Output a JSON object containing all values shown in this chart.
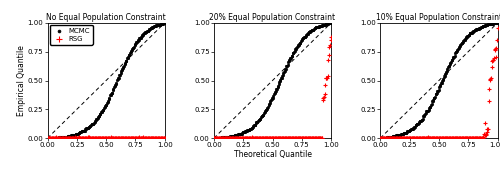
{
  "titles": [
    "No Equal Population Constraint",
    "20% Equal Population Constraint",
    "10% Equal Population Constraint"
  ],
  "xlabel": "Theoretical Quantile",
  "ylabel": "Empirical Quantile",
  "xlim": [
    0.0,
    1.0
  ],
  "ylim": [
    0.0,
    1.0
  ],
  "xticks": [
    0.0,
    0.25,
    0.5,
    0.75,
    1.0
  ],
  "yticks": [
    0.0,
    0.25,
    0.5,
    0.75,
    1.0
  ],
  "mcmc_color": "black",
  "rsg_color": "red",
  "mcmc_label": "MCMC",
  "rsg_label": "RSG",
  "mcmc_marker": "o",
  "rsg_marker": "+",
  "mcmc_size": 3,
  "rsg_size": 10,
  "background_color": "white",
  "n_mcmc": 200,
  "n_rsg_p1": 200,
  "n_rsg_p2": 200,
  "n_rsg_p3": 200
}
